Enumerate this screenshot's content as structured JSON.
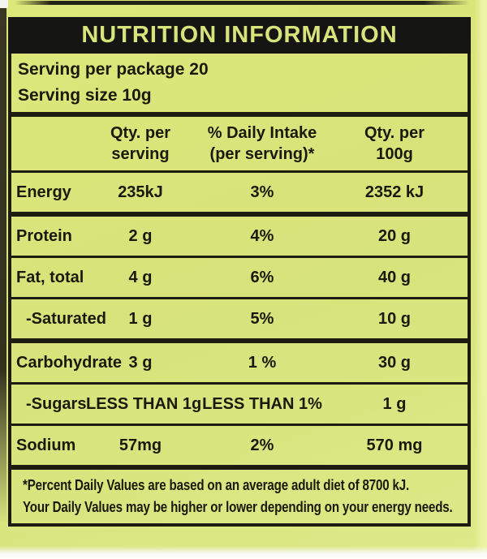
{
  "panel": {
    "title": "NUTRITION INFORMATION",
    "serving_per_package": "Serving per package 20",
    "serving_size": "Serving size 10g"
  },
  "table": {
    "columns": [
      {
        "line1": "Qty. per",
        "line2": "serving"
      },
      {
        "line1": "% Daily Intake",
        "line2": "(per serving)*"
      },
      {
        "line1": "Qty. per",
        "line2": "100g"
      }
    ],
    "rows": [
      {
        "label": "Energy",
        "qty_per_serving": "235kJ",
        "daily_intake": "3%",
        "qty_per_100g": "2352 kJ"
      },
      {
        "label": "Protein",
        "qty_per_serving": "2 g",
        "daily_intake": "4%",
        "qty_per_100g": "20 g"
      },
      {
        "label": "Fat, total",
        "qty_per_serving": "4 g",
        "daily_intake": "6%",
        "qty_per_100g": "40 g"
      },
      {
        "label": "-Saturated",
        "qty_per_serving": "1 g",
        "daily_intake": "5%",
        "qty_per_100g": "10 g"
      },
      {
        "label": "Carbohydrate",
        "qty_per_serving": "3 g",
        "daily_intake": "1 %",
        "qty_per_100g": "30 g"
      },
      {
        "label": "-Sugars",
        "qty_per_serving": "LESS THAN 1g",
        "daily_intake": "LESS THAN 1%",
        "qty_per_100g": "1 g"
      },
      {
        "label": "Sodium",
        "qty_per_serving": "57mg",
        "daily_intake": "2%",
        "qty_per_100g": "570 mg"
      }
    ]
  },
  "footnote": {
    "line1": "*Percent Daily Values are based on an average adult diet of 8700 kJ.",
    "line2": "Your Daily Values may be higher or lower depending on your energy needs."
  },
  "colors": {
    "background": "#d7e37b",
    "header_bar": "#151513",
    "text": "#1a1a0c",
    "header_text": "#d7e37b",
    "rule": "#1c1c10"
  }
}
